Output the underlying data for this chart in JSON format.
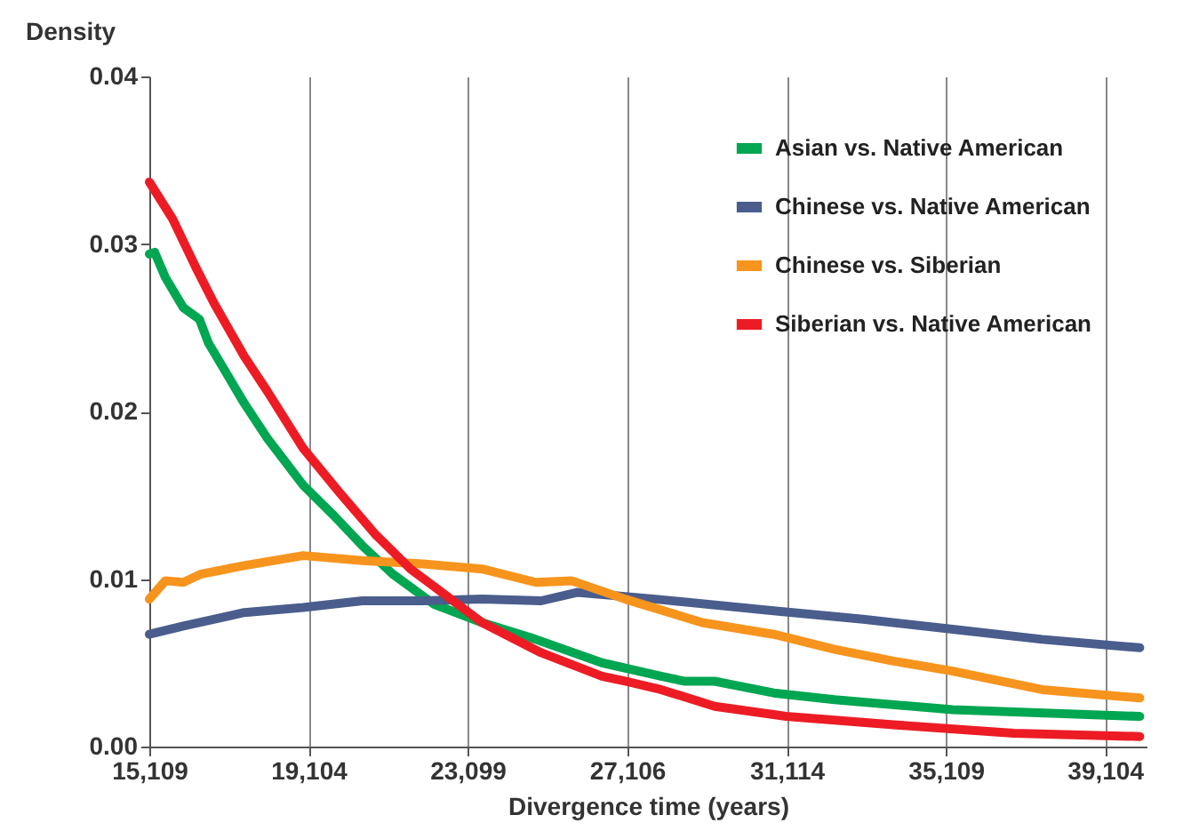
{
  "chart_data": {
    "type": "line",
    "xlabel": "Divergence time (years)",
    "ylabel": "Density",
    "xlim": [
      15109,
      40150
    ],
    "ylim": [
      0,
      0.04
    ],
    "xticks": [
      {
        "value": 15109,
        "label": "15,109"
      },
      {
        "value": 19104,
        "label": "19,104"
      },
      {
        "value": 23099,
        "label": "23,099"
      },
      {
        "value": 27106,
        "label": "27,106"
      },
      {
        "value": 31114,
        "label": "31,114"
      },
      {
        "value": 35109,
        "label": "35,109"
      },
      {
        "value": 39104,
        "label": "39,104"
      }
    ],
    "yticks": [
      {
        "value": 0,
        "label": "0.00"
      },
      0.01,
      0.02,
      0.03,
      0.04
    ],
    "grid": "x",
    "legend": "top right",
    "line_style": "solid",
    "series": [
      {
        "name": "Asian vs. Native American",
        "color": "#00a651",
        "x": [
          15109,
          15244,
          15513,
          15963,
          16367,
          16592,
          17490,
          18074,
          18973,
          19737,
          20456,
          21220,
          22253,
          23466,
          24814,
          26476,
          27959,
          28543,
          29307,
          30789,
          32317,
          35283,
          39980
        ],
        "values": [
          0.0294,
          0.0295,
          0.028,
          0.0262,
          0.0255,
          0.0241,
          0.0205,
          0.0184,
          0.0156,
          0.0138,
          0.012,
          0.0103,
          0.0085,
          0.0074,
          0.0064,
          0.005,
          0.0042,
          0.0039,
          0.0039,
          0.0032,
          0.0028,
          0.0022,
          0.0018
        ]
      },
      {
        "name": "Chinese vs. Native American",
        "color": "#4a5d8c",
        "x": [
          15109,
          15963,
          17490,
          18973,
          20456,
          21984,
          23466,
          24949,
          25847,
          27824,
          30789,
          33036,
          35283,
          37529,
          39980
        ],
        "values": [
          0.0067,
          0.0072,
          0.008,
          0.0083,
          0.0087,
          0.0087,
          0.0088,
          0.0087,
          0.0092,
          0.0088,
          0.0081,
          0.0076,
          0.007,
          0.0064,
          0.0059
        ]
      },
      {
        "name": "Chinese vs. Siberian",
        "color": "#f7941d",
        "x": [
          15109,
          15513,
          15963,
          16412,
          17490,
          18973,
          20456,
          21984,
          23466,
          24814,
          25712,
          27060,
          28992,
          30789,
          32317,
          33800,
          35283,
          37529,
          39980
        ],
        "values": [
          0.0088,
          0.0099,
          0.0098,
          0.0103,
          0.0108,
          0.0114,
          0.0111,
          0.0109,
          0.0106,
          0.0098,
          0.0099,
          0.0088,
          0.0074,
          0.0067,
          0.0058,
          0.0051,
          0.0045,
          0.0034,
          0.0029
        ]
      },
      {
        "name": "Siberian vs. Native American",
        "color": "#ed1c24",
        "x": [
          15109,
          15693,
          16277,
          16726,
          17490,
          18074,
          18973,
          19872,
          20771,
          21669,
          22568,
          23466,
          24949,
          26476,
          27060,
          27959,
          29307,
          31104,
          33800,
          36810,
          39980
        ],
        "values": [
          0.0337,
          0.0315,
          0.0286,
          0.0265,
          0.0233,
          0.0212,
          0.0178,
          0.0152,
          0.0127,
          0.0106,
          0.009,
          0.0074,
          0.0056,
          0.0042,
          0.0039,
          0.0034,
          0.0024,
          0.0018,
          0.0013,
          0.0008,
          0.0006
        ]
      }
    ]
  }
}
